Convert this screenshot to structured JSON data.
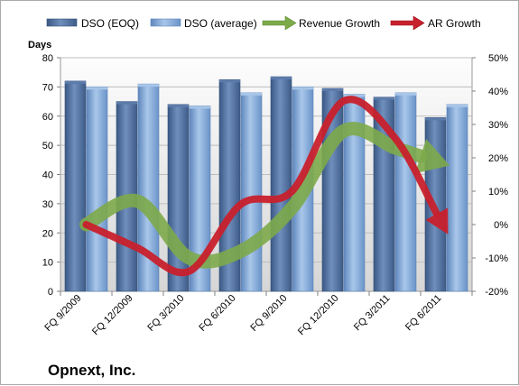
{
  "company": "Opnext, Inc.",
  "chart_data": {
    "type": "bar",
    "left_axis_label": "Days",
    "ylim": [
      0,
      80
    ],
    "y_ticks": [
      0,
      10,
      20,
      30,
      40,
      50,
      60,
      70,
      80
    ],
    "y2lim": [
      -20,
      50
    ],
    "y2_ticks": [
      "-20%",
      "-10%",
      "0%",
      "10%",
      "20%",
      "30%",
      "40%",
      "50%"
    ],
    "categories": [
      "FQ 9/2009",
      "FQ 12/2009",
      "FQ 3/2010",
      "FQ 6/2010",
      "FQ 9/2010",
      "FQ 12/2010",
      "FQ 3/2011",
      "FQ 6/2011"
    ],
    "series": [
      {
        "name": "DSO (EOQ)",
        "kind": "bar",
        "axis": "left",
        "color": "#4f6f9e",
        "values": [
          72,
          65,
          64,
          72.5,
          73.5,
          69.5,
          66.5,
          59.5
        ]
      },
      {
        "name": "DSO (average)",
        "kind": "bar",
        "axis": "left",
        "color": "#7fa6d4",
        "values": [
          70,
          71,
          63.5,
          68,
          70,
          67.5,
          68,
          64
        ]
      },
      {
        "name": "Revenue Growth",
        "kind": "arrow",
        "axis": "right",
        "color": "#7daa4a",
        "values": [
          0,
          7,
          -10,
          -8,
          5,
          28,
          23,
          18
        ]
      },
      {
        "name": "AR Growth",
        "kind": "arrow",
        "axis": "right",
        "color": "#c8202c",
        "values": [
          0,
          -7,
          -14,
          6,
          10,
          37,
          26,
          -2
        ]
      }
    ],
    "legend": "top"
  }
}
